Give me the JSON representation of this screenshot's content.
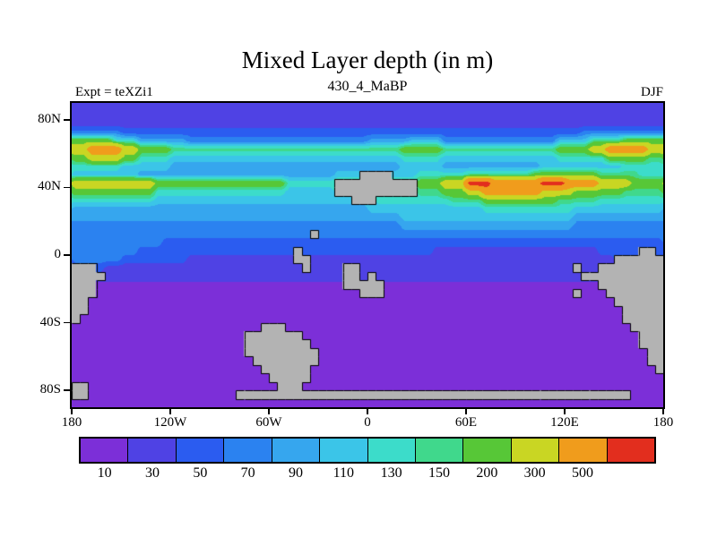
{
  "chart_data": {
    "type": "heatmap",
    "title": "Mixed Layer depth (in m)",
    "subtitle": "430_4_MaBP",
    "experiment": "Expt = teXZi1",
    "season": "DJF",
    "units": "m",
    "projection": "lat-lon equirectangular",
    "lon_range": [
      -180,
      180
    ],
    "lat_range": [
      -90,
      90
    ],
    "grid_cols": 72,
    "grid_rows": 36,
    "levels": [
      10,
      30,
      50,
      70,
      90,
      110,
      130,
      150,
      200,
      300,
      500
    ],
    "palette": [
      "#7c2fd8",
      "#4f42e4",
      "#2b5cf0",
      "#2b82f0",
      "#36a6ee",
      "#3bc5e8",
      "#3cdcca",
      "#40d88c",
      "#57c737",
      "#c9d623",
      "#f09c1c",
      "#e22e1e"
    ],
    "land_color": "#b3b3b3",
    "coast_color": "#000000",
    "band_values": {
      "0": 5,
      "1": 20,
      "2": 40,
      "3": 60,
      "4": 80,
      "5": 100,
      "6": 120,
      "7": 140,
      "8": 175,
      "9": 250,
      "a": 400,
      "b": 600
    },
    "field_encoding": "per row (90N to 90S): runs of [band_char, count], 72 columns from 180W to 180E",
    "field_rows": [
      [
        [
          "1",
          72
        ]
      ],
      [
        [
          "1",
          72
        ]
      ],
      [
        [
          "1",
          72
        ]
      ],
      [
        [
          "3",
          6
        ],
        [
          "2",
          56
        ],
        [
          "3",
          10
        ]
      ],
      [
        [
          "8",
          5
        ],
        [
          "6",
          3
        ],
        [
          "4",
          6
        ],
        [
          "3",
          22
        ],
        [
          "4",
          5
        ],
        [
          "5",
          4
        ],
        [
          "3",
          14
        ],
        [
          "5",
          4
        ],
        [
          "7",
          4
        ],
        [
          "8",
          5
        ]
      ],
      [
        [
          "9",
          2
        ],
        [
          "a",
          4
        ],
        [
          "9",
          2
        ],
        [
          "8",
          4
        ],
        [
          "7",
          28
        ],
        [
          "8",
          5
        ],
        [
          "7",
          14
        ],
        [
          "8",
          4
        ],
        [
          "9",
          2
        ],
        [
          "a",
          5
        ],
        [
          "9",
          2
        ]
      ],
      [
        [
          "8",
          2
        ],
        [
          "9",
          4
        ],
        [
          "8",
          2
        ],
        [
          "6",
          4
        ],
        [
          "5",
          28
        ],
        [
          "6",
          5
        ],
        [
          "5",
          14
        ],
        [
          "6",
          6
        ],
        [
          "8",
          5
        ],
        [
          "7",
          2
        ]
      ],
      [
        [
          "6",
          6
        ],
        [
          "5",
          6
        ],
        [
          "4",
          28
        ],
        [
          "5",
          5
        ],
        [
          "4",
          12
        ],
        [
          "5",
          10
        ],
        [
          "6",
          5
        ]
      ],
      [
        [
          "5",
          8
        ],
        [
          "4",
          24
        ],
        [
          "5",
          10
        ],
        [
          "6",
          6
        ],
        [
          "7",
          8
        ],
        [
          "8",
          8
        ],
        [
          "7",
          5
        ],
        [
          "6",
          3
        ]
      ],
      [
        [
          "9",
          10
        ],
        [
          "8",
          16
        ],
        [
          "6",
          6
        ],
        [
          "7",
          10
        ],
        [
          "8",
          3
        ],
        [
          "9",
          3
        ],
        [
          "b",
          3
        ],
        [
          "a",
          6
        ],
        [
          "b",
          3
        ],
        [
          "a",
          4
        ],
        [
          "9",
          4
        ],
        [
          "8",
          4
        ]
      ],
      [
        [
          "8",
          10
        ],
        [
          "6",
          16
        ],
        [
          "5",
          6
        ],
        [
          "6",
          10
        ],
        [
          "7",
          3
        ],
        [
          "8",
          3
        ],
        [
          "9",
          2
        ],
        [
          "a",
          7
        ],
        [
          "9",
          4
        ],
        [
          "8",
          6
        ],
        [
          "7",
          5
        ]
      ],
      [
        [
          "6",
          10
        ],
        [
          "5",
          27
        ],
        [
          "6",
          9
        ],
        [
          "7",
          4
        ],
        [
          "8",
          9
        ],
        [
          "7",
          5
        ],
        [
          "6",
          8
        ]
      ],
      [
        [
          "4",
          36
        ],
        [
          "5",
          14
        ],
        [
          "6",
          11
        ],
        [
          "5",
          11
        ]
      ],
      [
        [
          "4",
          40
        ],
        [
          "5",
          21
        ],
        [
          "4",
          11
        ]
      ],
      [
        [
          "3",
          40
        ],
        [
          "4",
          21
        ],
        [
          "3",
          11
        ]
      ],
      [
        [
          "3",
          72
        ]
      ],
      [
        [
          "3",
          11
        ],
        [
          "2",
          61
        ]
      ],
      [
        [
          "3",
          8
        ],
        [
          "2",
          36
        ],
        [
          "1",
          20
        ],
        [
          "2",
          8
        ]
      ],
      [
        [
          "3",
          6
        ],
        [
          "2",
          8
        ],
        [
          "1",
          52
        ],
        [
          "2",
          6
        ]
      ],
      [
        [
          "2",
          4
        ],
        [
          "1",
          68
        ]
      ],
      [
        [
          "1",
          72
        ]
      ],
      [
        [
          "0",
          72
        ]
      ],
      [
        [
          "0",
          72
        ]
      ],
      [
        [
          "0",
          72
        ]
      ],
      [
        [
          "0",
          72
        ]
      ],
      [
        [
          "0",
          72
        ]
      ],
      [
        [
          "0",
          72
        ]
      ],
      [
        [
          "0",
          72
        ]
      ],
      [
        [
          "0",
          72
        ]
      ],
      [
        [
          "0",
          72
        ]
      ],
      [
        [
          "0",
          72
        ]
      ],
      [
        [
          "0",
          72
        ]
      ],
      [
        [
          "0",
          72
        ]
      ],
      [
        [
          "0",
          72
        ]
      ],
      [
        [
          "0",
          72
        ]
      ],
      [
        [
          "0",
          72
        ]
      ]
    ],
    "land_encoding": "per row: inclusive [col_start, col_end] ranges of gray land cells",
    "land_rows": [
      [],
      [],
      [],
      [],
      [],
      [],
      [],
      [],
      [
        [
          35,
          38
        ]
      ],
      [
        [
          32,
          41
        ]
      ],
      [
        [
          32,
          41
        ]
      ],
      [
        [
          34,
          36
        ]
      ],
      [],
      [],
      [],
      [
        [
          29,
          29
        ]
      ],
      [],
      [
        [
          27,
          27
        ],
        [
          69,
          70
        ]
      ],
      [
        [
          27,
          28
        ],
        [
          66,
          71
        ]
      ],
      [
        [
          0,
          2
        ],
        [
          28,
          28
        ],
        [
          33,
          34
        ],
        [
          61,
          61
        ],
        [
          64,
          71
        ]
      ],
      [
        [
          0,
          3
        ],
        [
          33,
          34
        ],
        [
          36,
          36
        ],
        [
          62,
          71
        ]
      ],
      [
        [
          0,
          2
        ],
        [
          33,
          37
        ],
        [
          64,
          71
        ]
      ],
      [
        [
          0,
          2
        ],
        [
          35,
          37
        ],
        [
          61,
          61
        ],
        [
          65,
          71
        ]
      ],
      [
        [
          0,
          1
        ],
        [
          66,
          71
        ]
      ],
      [
        [
          0,
          1
        ],
        [
          67,
          71
        ]
      ],
      [
        [
          0,
          0
        ],
        [
          67,
          71
        ]
      ],
      [
        [
          23,
          25
        ],
        [
          68,
          71
        ]
      ],
      [
        [
          21,
          27
        ],
        [
          69,
          71
        ]
      ],
      [
        [
          21,
          28
        ],
        [
          69,
          71
        ]
      ],
      [
        [
          21,
          29
        ],
        [
          70,
          71
        ]
      ],
      [
        [
          22,
          29
        ],
        [
          70,
          71
        ]
      ],
      [
        [
          23,
          28
        ],
        [
          71,
          71
        ]
      ],
      [
        [
          24,
          28
        ]
      ],
      [
        [
          0,
          1
        ],
        [
          25,
          27
        ]
      ],
      [
        [
          0,
          1
        ],
        [
          20,
          67
        ]
      ],
      []
    ],
    "x_axis": {
      "ticks": [
        {
          "label": "180",
          "lon": -180
        },
        {
          "label": "120W",
          "lon": -120
        },
        {
          "label": "60W",
          "lon": -60
        },
        {
          "label": "0",
          "lon": 0
        },
        {
          "label": "60E",
          "lon": 60
        },
        {
          "label": "120E",
          "lon": 120
        },
        {
          "label": "180",
          "lon": 180
        }
      ]
    },
    "y_axis": {
      "ticks": [
        {
          "label": "80N",
          "lat": 80
        },
        {
          "label": "40N",
          "lat": 40
        },
        {
          "label": "0",
          "lat": 0
        },
        {
          "label": "40S",
          "lat": -40
        },
        {
          "label": "80S",
          "lat": -80
        }
      ]
    },
    "colorbar": {
      "labels": [
        "10",
        "30",
        "50",
        "70",
        "90",
        "110",
        "130",
        "150",
        "200",
        "300",
        "500"
      ]
    }
  }
}
